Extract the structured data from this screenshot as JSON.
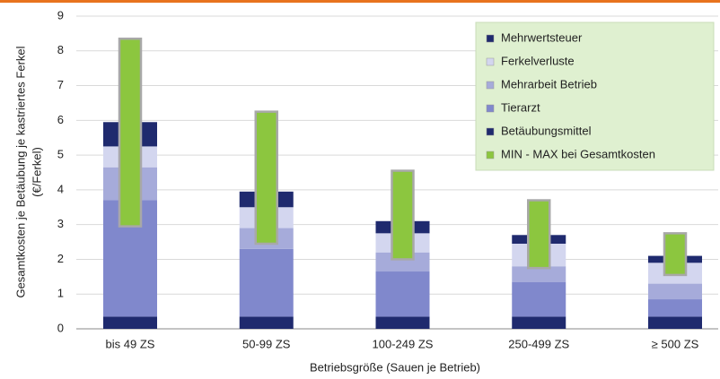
{
  "chart_data": {
    "type": "stacked_bar",
    "y_label": "Gesamtkosten je Betäubung je kastriertes Ferkel",
    "y_label_unit": "(€/Ferkel)",
    "x_label": "Betriebsgröße (Sauen je Betrieb)",
    "categories": [
      "bis 49 ZS",
      "50-99 ZS",
      "100-249 ZS",
      "250-499 ZS",
      "≥ 500 ZS"
    ],
    "series": [
      {
        "name": "Betäubungsmittel",
        "color": "#1f2a6e",
        "values": [
          0.35,
          0.35,
          0.35,
          0.35,
          0.35
        ]
      },
      {
        "name": "Tierarzt",
        "color": "#8088cc",
        "values": [
          3.35,
          1.95,
          1.3,
          1.0,
          0.5
        ]
      },
      {
        "name": "Mehrarbeit Betrieb",
        "color": "#a6abda",
        "values": [
          0.95,
          0.6,
          0.55,
          0.45,
          0.45
        ]
      },
      {
        "name": "Ferkelverluste",
        "color": "#d3d6ef",
        "values": [
          0.6,
          0.6,
          0.55,
          0.65,
          0.6
        ]
      },
      {
        "name": "Mehrwertsteuer",
        "color": "#1f2a6e",
        "values": [
          0.7,
          0.45,
          0.35,
          0.25,
          0.2
        ]
      }
    ],
    "range": {
      "name": "MIN - MAX bei Gesamtkosten",
      "color": "#8cc63f",
      "low": [
        2.95,
        2.45,
        2.0,
        1.75,
        1.55
      ],
      "high": [
        8.35,
        6.25,
        4.55,
        3.7,
        2.75
      ]
    },
    "ylim": [
      0,
      9
    ],
    "yticks": [
      0,
      1,
      2,
      3,
      4,
      5,
      6,
      7,
      8,
      9
    ],
    "grid": true,
    "legend": "top-right"
  }
}
